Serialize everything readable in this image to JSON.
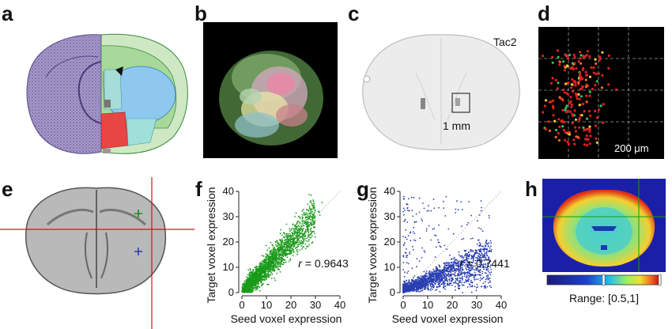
{
  "panel_labels": {
    "a": "a",
    "b": "b",
    "c": "c",
    "d": "d",
    "e": "e",
    "f": "f",
    "g": "g",
    "h": "h"
  },
  "panel_c": {
    "gene": "Tac2",
    "scale_bar": "1 mm"
  },
  "panel_d": {
    "scale_bar": "200 μm"
  },
  "panel_h": {
    "range_label": "Range: [0.5,1]"
  },
  "chart_data": [
    {
      "type": "scatter",
      "panel": "f",
      "title": "",
      "xlabel": "Seed voxel expression",
      "ylabel": "Target voxel expression",
      "xlim": [
        0,
        40
      ],
      "ylim": [
        0,
        40
      ],
      "xticks": [
        0,
        10,
        20,
        30,
        40
      ],
      "yticks": [
        0,
        10,
        20,
        30,
        40
      ],
      "color": "#1a9a1a",
      "annotation": {
        "r_symbol": "r",
        "r_text": " = 0.9643",
        "r": 0.9643
      },
      "n_points": 2200,
      "points_sample": [
        [
          1,
          1
        ],
        [
          3,
          2.5
        ],
        [
          5,
          5
        ],
        [
          8,
          7.5
        ],
        [
          10,
          10
        ],
        [
          12,
          11
        ],
        [
          15,
          15
        ],
        [
          18,
          17
        ],
        [
          20,
          19
        ],
        [
          22,
          22
        ],
        [
          25,
          24
        ],
        [
          28,
          27
        ],
        [
          30,
          29
        ],
        [
          33,
          32
        ],
        [
          35,
          33
        ]
      ]
    },
    {
      "type": "scatter",
      "panel": "g",
      "title": "",
      "xlabel": "Seed voxel expression",
      "ylabel": "Target voxel expression",
      "xlim": [
        0,
        40
      ],
      "ylim": [
        0,
        40
      ],
      "xticks": [
        0,
        10,
        20,
        30,
        40
      ],
      "yticks": [
        0,
        10,
        20,
        30,
        40
      ],
      "color": "#2a3fb0",
      "annotation": {
        "r_symbol": "r",
        "r_text": " = 0.7441",
        "r": 0.7441
      },
      "n_points": 2200,
      "points_sample": [
        [
          1,
          1
        ],
        [
          3,
          1
        ],
        [
          5,
          3
        ],
        [
          8,
          5
        ],
        [
          10,
          8
        ],
        [
          12,
          6
        ],
        [
          15,
          12
        ],
        [
          18,
          10
        ],
        [
          20,
          16
        ],
        [
          22,
          13
        ],
        [
          25,
          18
        ],
        [
          28,
          20
        ],
        [
          30,
          24
        ],
        [
          33,
          22
        ],
        [
          35,
          30
        ]
      ]
    }
  ],
  "colors": {
    "green": "#1a9a1a",
    "blue": "#2a3fb0",
    "red": "#e01010",
    "black": "#000000"
  }
}
